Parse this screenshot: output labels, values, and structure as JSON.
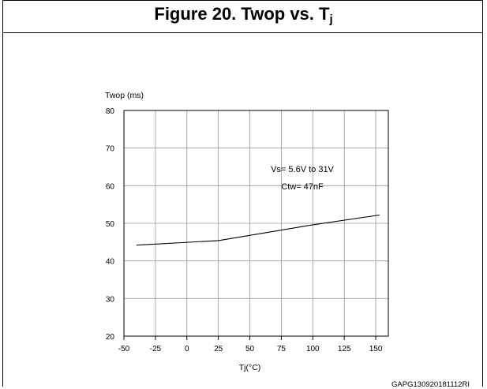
{
  "figure": {
    "title": "Figure 20. Twop vs. T",
    "title_sub": "j",
    "code": "GAPG130920181112RI"
  },
  "chart_data": {
    "type": "line",
    "title": "Figure 20. Twop vs. Tj",
    "xlabel": "Tj(°C)",
    "ylabel": "Twop (ms)",
    "xlim": [
      -50,
      160
    ],
    "ylim": [
      20,
      80
    ],
    "xticks": [
      -50,
      -25,
      0,
      25,
      50,
      75,
      100,
      125,
      150
    ],
    "yticks": [
      20,
      30,
      40,
      50,
      60,
      70,
      80
    ],
    "grid": true,
    "series": [
      {
        "x": [
          -40,
          25,
          100,
          153
        ],
        "y": [
          44.2,
          45.4,
          49.6,
          52.2
        ]
      }
    ],
    "annotations": [
      "Vs= 5.6V to 31V",
      "Ctw= 47nF"
    ],
    "colors": {
      "line": "#000000",
      "grid": "#999999"
    }
  }
}
